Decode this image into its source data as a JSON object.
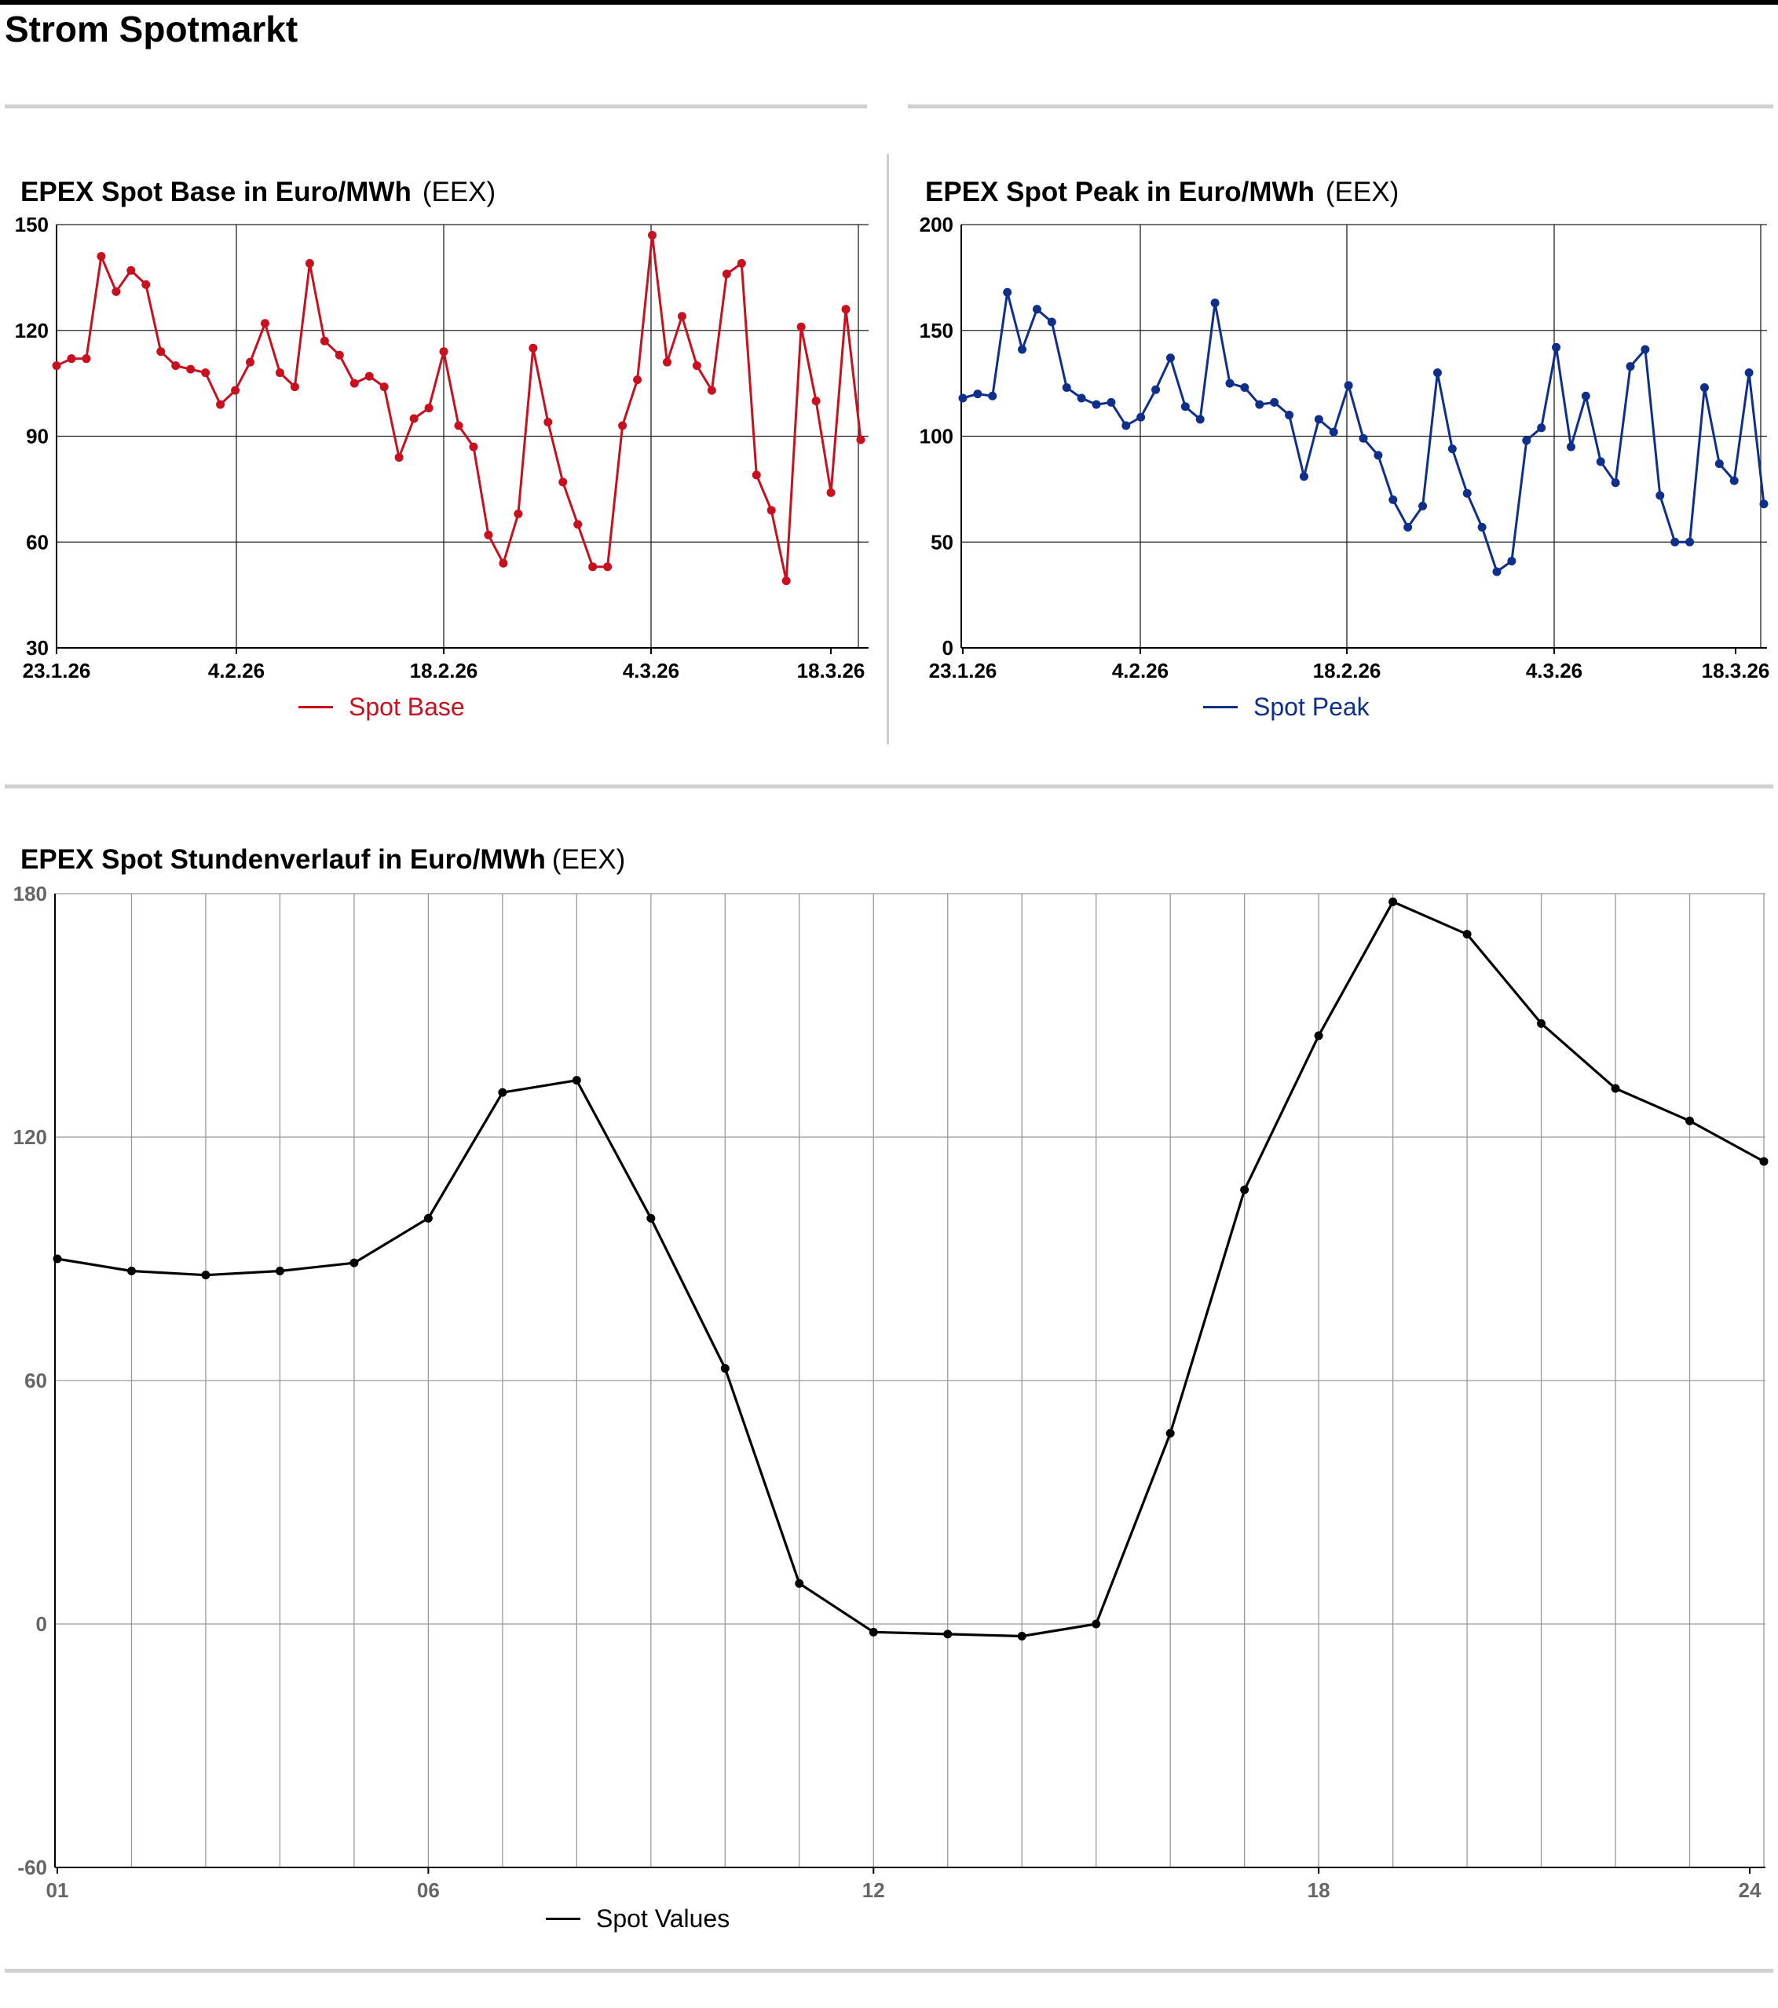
{
  "page": {
    "title": "Strom Spotmarkt"
  },
  "colors": {
    "base": "#c8101e",
    "peak": "#0f2f8a",
    "hourly": "#000000",
    "grid": "#222222",
    "grid_light": "#999999",
    "rule": "#cfcfcf"
  },
  "chart_data": [
    {
      "id": "base",
      "type": "line",
      "title": "EPEX Spot Base in Euro/MWh",
      "source": "(EEX)",
      "x_ticks": [
        "23.1.26",
        "4.2.26",
        "18.2.26",
        "4.3.26",
        "18.3.26"
      ],
      "ylim": [
        30,
        150
      ],
      "y_ticks": [
        30,
        60,
        90,
        120,
        150
      ],
      "grid": true,
      "legend_position": "bottom-center",
      "series": [
        {
          "name": "Spot Base",
          "values": [
            110,
            112,
            112,
            141,
            131,
            137,
            133,
            114,
            110,
            109,
            108,
            99,
            103,
            111,
            122,
            108,
            104,
            139,
            117,
            113,
            105,
            107,
            104,
            84,
            95,
            98,
            114,
            93,
            87,
            62,
            54,
            68,
            115,
            94,
            77,
            65,
            53,
            53,
            93,
            106,
            147,
            111,
            124,
            110,
            103,
            136,
            139,
            79,
            69,
            49,
            121,
            100,
            74,
            126,
            89
          ]
        }
      ]
    },
    {
      "id": "peak",
      "type": "line",
      "title": "EPEX Spot Peak in Euro/MWh",
      "source": "(EEX)",
      "x_ticks": [
        "23.1.26",
        "4.2.26",
        "18.2.26",
        "4.3.26",
        "18.3.26"
      ],
      "ylim": [
        0,
        200
      ],
      "y_ticks": [
        0,
        50,
        100,
        150,
        200
      ],
      "grid": true,
      "legend_position": "bottom-center",
      "series": [
        {
          "name": "Spot Peak",
          "values": [
            118,
            120,
            119,
            168,
            141,
            160,
            154,
            123,
            118,
            115,
            116,
            105,
            109,
            122,
            137,
            114,
            108,
            163,
            125,
            123,
            115,
            116,
            110,
            81,
            108,
            102,
            124,
            99,
            91,
            70,
            57,
            67,
            130,
            94,
            73,
            57,
            36,
            41,
            98,
            104,
            142,
            95,
            119,
            88,
            78,
            133,
            141,
            72,
            50,
            50,
            123,
            87,
            79,
            130,
            68
          ]
        }
      ]
    },
    {
      "id": "hourly",
      "type": "line",
      "title": "EPEX Spot Stundenverlauf in Euro/MWh",
      "source": "(EEX)",
      "x": [
        "01",
        "02",
        "03",
        "04",
        "05",
        "06",
        "07",
        "08",
        "09",
        "10",
        "11",
        "12",
        "13",
        "14",
        "15",
        "16",
        "17",
        "18",
        "19",
        "20",
        "21",
        "22",
        "23",
        "24"
      ],
      "x_tick_labels": [
        "01",
        "06",
        "12",
        "18",
        "24"
      ],
      "ylim": [
        -60,
        180
      ],
      "y_ticks": [
        -60,
        0,
        60,
        120,
        180
      ],
      "grid": true,
      "legend_position": "bottom-center",
      "series": [
        {
          "name": "Spot Values",
          "values": [
            90,
            87,
            86,
            87,
            89,
            100,
            131,
            134,
            100,
            63,
            10,
            -2,
            -2.5,
            -3,
            0,
            47,
            107,
            145,
            178,
            170,
            148,
            132,
            124,
            114
          ]
        }
      ]
    }
  ]
}
